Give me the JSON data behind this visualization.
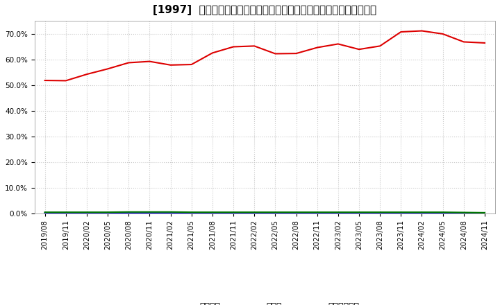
{
  "title": "[1997]  自己資本、のれん、繰延税金資産の総資産に対する比率の推移",
  "x_labels": [
    "2019/08",
    "2019/11",
    "2020/02",
    "2020/05",
    "2020/08",
    "2020/11",
    "2021/02",
    "2021/05",
    "2021/08",
    "2021/11",
    "2022/02",
    "2022/05",
    "2022/08",
    "2022/11",
    "2023/02",
    "2023/05",
    "2023/08",
    "2023/11",
    "2024/02",
    "2024/05",
    "2024/08",
    "2024/11"
  ],
  "jiko_shihon": [
    51.8,
    51.7,
    54.2,
    56.3,
    58.7,
    59.2,
    57.8,
    58.0,
    62.5,
    64.9,
    65.2,
    62.2,
    62.3,
    64.6,
    66.0,
    63.9,
    65.2,
    70.7,
    71.1,
    69.9,
    66.8,
    66.4
  ],
  "noren": [
    0.3,
    0.3,
    0.3,
    0.3,
    0.2,
    0.2,
    0.2,
    0.2,
    0.2,
    0.2,
    0.2,
    0.2,
    0.2,
    0.2,
    0.2,
    0.2,
    0.1,
    0.1,
    0.1,
    0.1,
    0.1,
    0.0
  ],
  "kurinobe_zeikin": [
    0.5,
    0.5,
    0.5,
    0.5,
    0.6,
    0.6,
    0.6,
    0.5,
    0.5,
    0.5,
    0.5,
    0.5,
    0.5,
    0.5,
    0.5,
    0.5,
    0.5,
    0.5,
    0.5,
    0.5,
    0.4,
    0.3
  ],
  "line_colors": {
    "jiko_shihon": "#dd0000",
    "noren": "#0000cc",
    "kurinobe_zeikin": "#007700"
  },
  "legend_labels": {
    "jiko_shihon": "自己資本",
    "noren": "のれん",
    "kurinobe_zeikin": "繰延税金資産"
  },
  "ylim": [
    0,
    75
  ],
  "yticks": [
    0,
    10,
    20,
    30,
    40,
    50,
    60,
    70
  ],
  "background_color": "#ffffff",
  "plot_bg_color": "#ffffff",
  "grid_color": "#c8c8c8",
  "title_fontsize": 11,
  "tick_fontsize": 7.5,
  "legend_fontsize": 9
}
